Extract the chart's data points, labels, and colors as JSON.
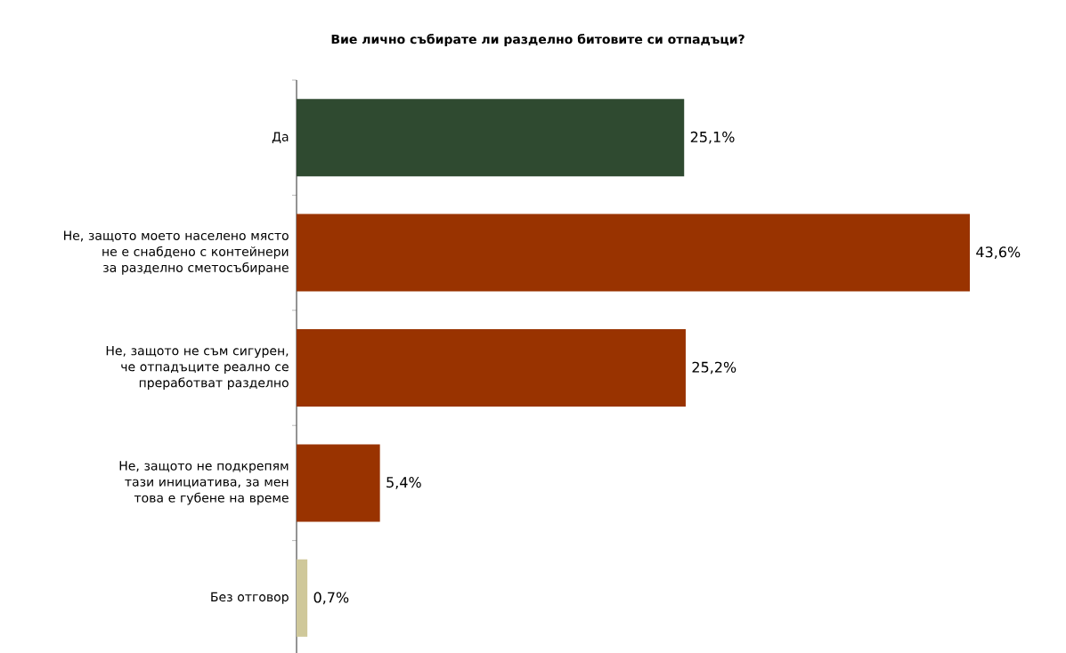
{
  "chart_data": {
    "type": "bar",
    "orientation": "horizontal",
    "title": "Вие лично събирате ли разделно битовите си отпадъци?",
    "categories": [
      "Да",
      "Не, защото моето населено място не е снабдено с контейнери за разделно сметосъбиране",
      "Не, защото не съм сигурен, че отпадъците реално се преработват разделно",
      "Не, защото не подкрепям тази инициатива, за мен това е губене на време",
      "Без отговор"
    ],
    "values": [
      25.1,
      43.6,
      25.2,
      5.4,
      0.7
    ],
    "colors": [
      "#2f4a30",
      "#993300",
      "#993300",
      "#993300",
      "#cfc89a"
    ],
    "value_labels": [
      "25,1%",
      "43,6%",
      "25,2%",
      "5,4%",
      "0,7%"
    ],
    "tick_labels": "y"
  }
}
